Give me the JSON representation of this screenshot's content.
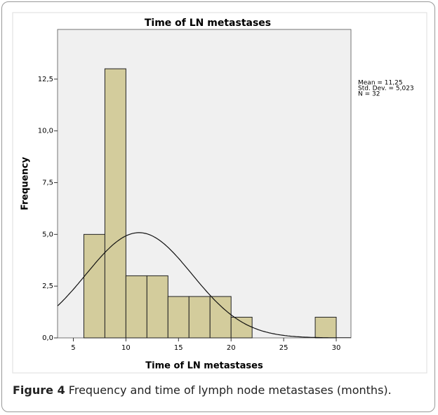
{
  "chart_data": {
    "type": "histogram",
    "title": "Time of LN metastases",
    "xlabel": "Time of LN metastases",
    "ylabel": "Frequency",
    "bins": [
      6,
      8,
      10,
      12,
      14,
      16,
      18,
      20,
      22,
      24,
      26,
      28,
      30
    ],
    "values": [
      5,
      13,
      3,
      3,
      2,
      2,
      2,
      1,
      0,
      0,
      0,
      1
    ],
    "color": "#d3cc9c",
    "xlim": [
      3.5,
      31.4
    ],
    "xticks": [
      5,
      10,
      15,
      20,
      25,
      30
    ],
    "ylim": [
      0,
      14.9
    ],
    "yticks": [
      {
        "value": 0,
        "label": "0,0"
      },
      {
        "value": 2.5,
        "label": "2,5"
      },
      {
        "value": 5,
        "label": "5,0"
      },
      {
        "value": 7.5,
        "label": "7,5"
      },
      {
        "value": 10,
        "label": "10,0"
      },
      {
        "value": 12.5,
        "label": "12,5"
      }
    ],
    "stats": [
      {
        "value": 11.25,
        "label": "Mean = 11,25"
      },
      {
        "value": 5.023,
        "label": "Std. Dev. = 5,023"
      },
      {
        "value": 32,
        "label": "N = 32"
      }
    ]
  },
  "caption": {
    "label": "Figure 4",
    "text": "Frequency and time of lymph node metastases (months)."
  }
}
